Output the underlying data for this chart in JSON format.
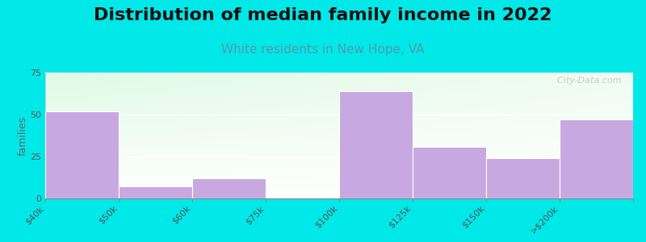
{
  "title": "Distribution of median family income in 2022",
  "subtitle": "White residents in New Hope, VA",
  "categories": [
    "$40k",
    "$50k",
    "$60k",
    "$75k",
    "$100k",
    "$125k",
    "$150k",
    ">$200k"
  ],
  "values": [
    52,
    7,
    12,
    0,
    64,
    31,
    24,
    47
  ],
  "bar_color": "#c8a8e0",
  "ylabel": "families",
  "ylim": [
    0,
    75
  ],
  "yticks": [
    0,
    25,
    50,
    75
  ],
  "background_color": "#00e8e8",
  "title_fontsize": 16,
  "subtitle_fontsize": 11,
  "subtitle_color": "#5599aa",
  "watermark": "  City-Data.com",
  "tick_label_fontsize": 8,
  "ylabel_fontsize": 9
}
